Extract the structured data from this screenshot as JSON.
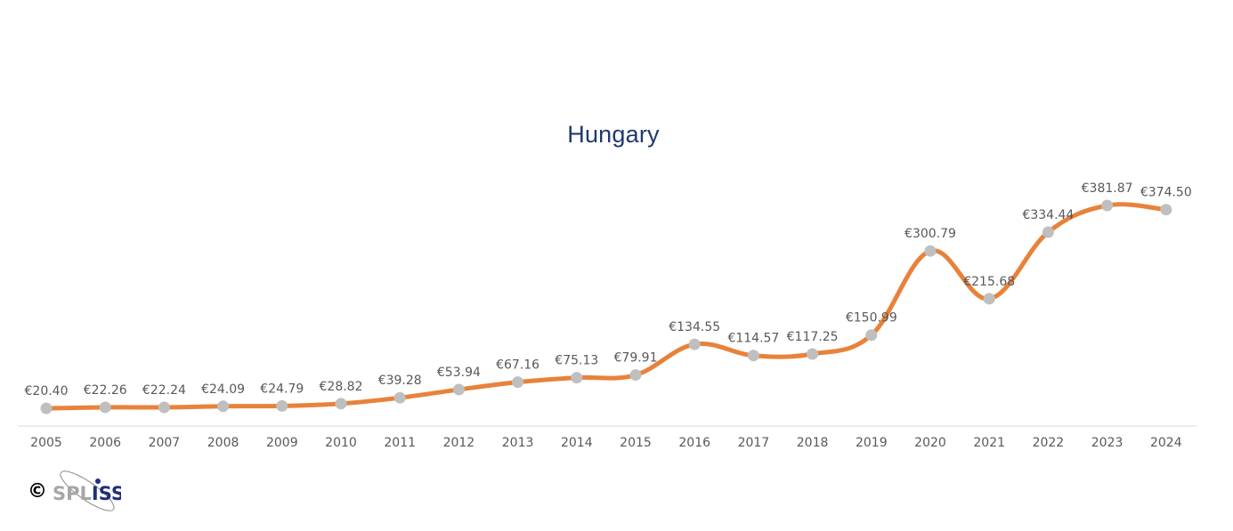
{
  "chart_data": {
    "type": "line",
    "title": "Hungary",
    "xlabel": "",
    "ylabel": "",
    "ylim": [
      0,
      430
    ],
    "grid": false,
    "legend": "none",
    "categories": [
      "2005",
      "2006",
      "2007",
      "2008",
      "2009",
      "2010",
      "2011",
      "2012",
      "2013",
      "2014",
      "2015",
      "2016",
      "2017",
      "2018",
      "2019",
      "2020",
      "2021",
      "2022",
      "2023",
      "2024"
    ],
    "values": [
      20.4,
      22.26,
      22.24,
      24.09,
      24.79,
      28.82,
      39.28,
      53.94,
      67.16,
      75.13,
      79.91,
      134.55,
      114.57,
      117.25,
      150.99,
      300.79,
      215.68,
      334.44,
      381.87,
      374.5
    ],
    "labels": [
      "€20.40",
      "€22.26",
      "€22.24",
      "€24.09",
      "€24.79",
      "€28.82",
      "€39.28",
      "€53.94",
      "€67.16",
      "€75.13",
      "€79.91",
      "€134.55",
      "€114.57",
      "€117.25",
      "€150.99",
      "€300.79",
      "€215.68",
      "€334.44",
      "€381.87",
      "€374.50"
    ],
    "colors": {
      "line": "#e8823a",
      "marker": "#bfbfbf",
      "axis": "#d9d9d9",
      "title": "#1f3a6e"
    }
  },
  "footer": {
    "copyright_symbol": "©",
    "logo_text": "SPLISS",
    "logo_parts": {
      "a": "SP",
      "b": "L",
      "c": "I",
      "d": "SS"
    }
  }
}
